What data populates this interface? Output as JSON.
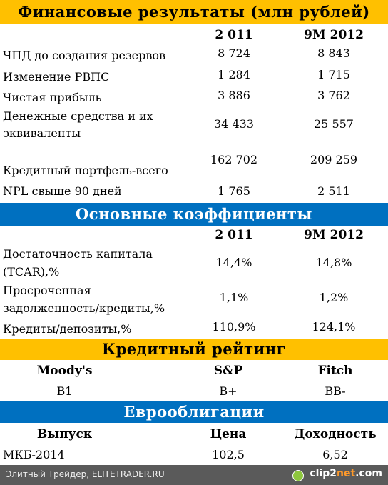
{
  "sections": {
    "financial": {
      "title": "Финансовые результаты (млн рублей)",
      "col1": "2 011",
      "col2": "9M 2012",
      "rows": [
        {
          "label": "ЧПД до создания резервов",
          "v1": "8 724",
          "v2": "8 843"
        },
        {
          "label": "Изменение РВПС",
          "v1": "1 284",
          "v2": "1 715"
        },
        {
          "label": "Чистая прибыль",
          "v1": "3 886",
          "v2": "3 762"
        },
        {
          "label1": "Денежные средства и их",
          "label2": "эквиваленты",
          "v1": "34 433",
          "v2": "25 557"
        },
        {
          "label": "Кредитный портфель-всего",
          "v1": "162 702",
          "v2": "209 259"
        },
        {
          "label": "NPL свыше 90 дней",
          "v1": "1 765",
          "v2": "2 511"
        }
      ]
    },
    "ratios": {
      "title": "Основные коэффициенты",
      "col1": "2 011",
      "col2": "9M 2012",
      "rows": [
        {
          "label1": "Достаточность капитала",
          "label2": "(TCAR),%",
          "v1": "14,4%",
          "v2": "14,8%"
        },
        {
          "label1": "Просроченная",
          "label2": "задолженность/кредиты,%",
          "v1": "1,1%",
          "v2": "1,2%"
        },
        {
          "label": "Кредиты/депозиты,%",
          "v1": "110,9%",
          "v2": "124,1%"
        }
      ]
    },
    "rating": {
      "title": "Кредитный рейтинг",
      "headers": [
        "Moody's",
        "S&P",
        "Fitch"
      ],
      "values": [
        "B1",
        "B+",
        "BB-"
      ]
    },
    "eurobonds": {
      "title": "Еврооблигации",
      "headers": [
        "Выпуск",
        "Цена",
        "Доходность"
      ],
      "values": [
        "МКБ-2014",
        "102,5",
        "6,52"
      ]
    }
  },
  "footer": {
    "credit": "Элитный Трейдер, ELITETRADER.RU",
    "brand_main": "clip2",
    "brand_accent": "net",
    "brand_tail": ".com"
  },
  "colors": {
    "yellow_band": "#ffc000",
    "blue_band": "#0070c0",
    "footer_bg": "#5a5a5a"
  }
}
